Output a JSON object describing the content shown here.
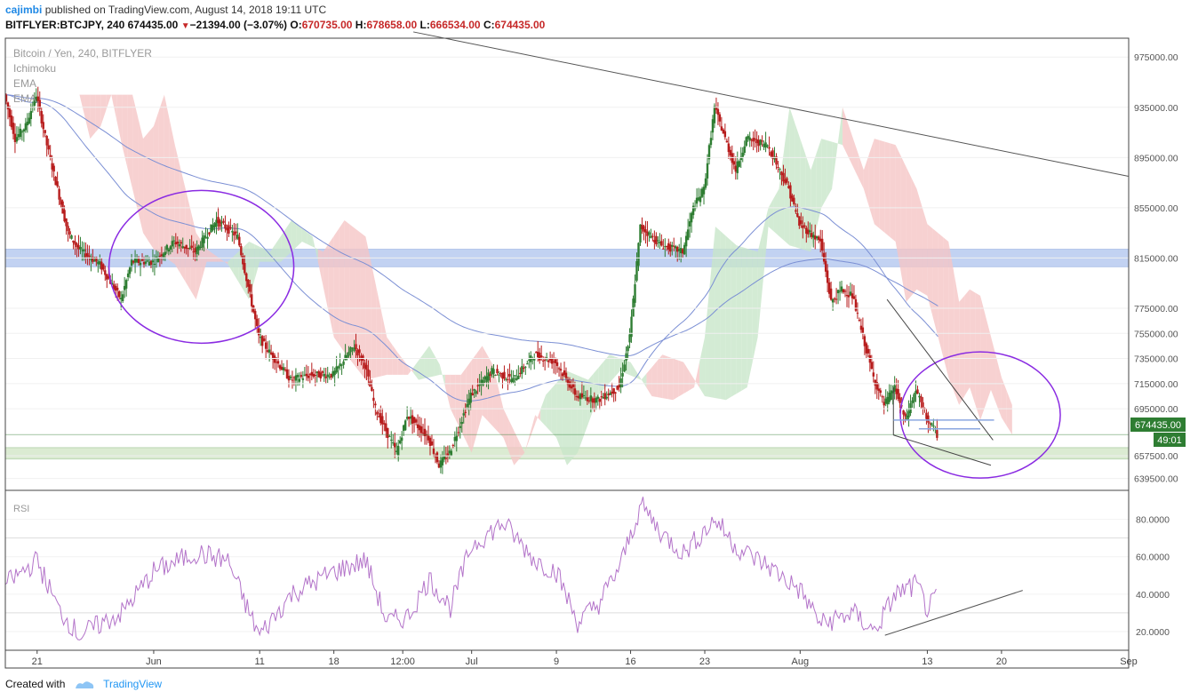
{
  "header": {
    "author": "cajimbi",
    "published_text": " published on TradingView.com, August 14, 2018 19:11 UTC",
    "symbol": "BITFLYER:BTCJPY, 240",
    "last": "674435.00",
    "arrow": "▼",
    "change": "−21394.00 (−3.07%)",
    "o_label": "O:",
    "o_value": "670735.00",
    "h_label": "H:",
    "h_value": "678658.00",
    "l_label": "L:",
    "l_value": "666534.00",
    "c_label": "C:",
    "c_value": "674435.00"
  },
  "legend": {
    "title": "Bitcoin / Yen, 240, BITFLYER",
    "items": [
      "Ichimoku",
      "EMA",
      "EMA"
    ]
  },
  "rsi_label": "RSI",
  "price_badge": "674435.00",
  "timer_badge": "49:01",
  "footer": {
    "created": "Created with",
    "brand": "TradingView"
  },
  "colors": {
    "up": "#2e7d32",
    "down": "#b71c1c",
    "cloud_red": "#f5c6c6",
    "cloud_green": "#c8e6c9",
    "zone_blue": "#aec4ee",
    "zone_green": "#cfe5c3",
    "circle": "#8a2be2",
    "rsi": "#b373c9",
    "ema": "#7b8fd4",
    "badge": "#2e7d32"
  },
  "chart_data": {
    "type": "candlestick",
    "symbol": "BITFLYER:BTCJPY",
    "price_axis_ticks": [
      "975000.00",
      "935000.00",
      "895000.00",
      "855000.00",
      "815000.00",
      "775000.00",
      "755000.00",
      "735000.00",
      "715000.00",
      "695000.00",
      "657500.00",
      "639500.00"
    ],
    "time_axis_ticks": [
      "21",
      "Jun",
      "11",
      "18",
      "12:00",
      "Jul",
      "9",
      "16",
      "23",
      "Aug",
      "13",
      "20",
      "Sep"
    ],
    "rsi_axis_ticks": [
      "80.0000",
      "60.0000",
      "40.0000",
      "20.0000"
    ],
    "ylim": [
      630000,
      990000
    ],
    "rsi_ylim": [
      10,
      95
    ],
    "close_path": [
      {
        "t": "May 18",
        "close": 945000
      },
      {
        "t": "May 19",
        "close": 910000
      },
      {
        "t": "May 20",
        "close": 920000
      },
      {
        "t": "May 21",
        "close": 945000
      },
      {
        "t": "May 22",
        "close": 905000
      },
      {
        "t": "May 23",
        "close": 870000
      },
      {
        "t": "May 24",
        "close": 835000
      },
      {
        "t": "May 25",
        "close": 822000
      },
      {
        "t": "May 27",
        "close": 810000
      },
      {
        "t": "May 29",
        "close": 782000
      },
      {
        "t": "May 30",
        "close": 812000
      },
      {
        "t": "Jun 1",
        "close": 812000
      },
      {
        "t": "Jun 3",
        "close": 828000
      },
      {
        "t": "Jun 5",
        "close": 820000
      },
      {
        "t": "Jun 7",
        "close": 845000
      },
      {
        "t": "Jun 9",
        "close": 832000
      },
      {
        "t": "Jun 10",
        "close": 792000
      },
      {
        "t": "Jun 11",
        "close": 752000
      },
      {
        "t": "Jun 12",
        "close": 740000
      },
      {
        "t": "Jun 14",
        "close": 718000
      },
      {
        "t": "Jun 16",
        "close": 722000
      },
      {
        "t": "Jun 18",
        "close": 722000
      },
      {
        "t": "Jun 20",
        "close": 745000
      },
      {
        "t": "Jun 21",
        "close": 730000
      },
      {
        "t": "Jun 22",
        "close": 695000
      },
      {
        "t": "Jun 24",
        "close": 660000
      },
      {
        "t": "Jun 25",
        "close": 690000
      },
      {
        "t": "Jun 27",
        "close": 672000
      },
      {
        "t": "Jun 28",
        "close": 650000
      },
      {
        "t": "Jun 29",
        "close": 660000
      },
      {
        "t": "Jul 1",
        "close": 706000
      },
      {
        "t": "Jul 3",
        "close": 725000
      },
      {
        "t": "Jul 5",
        "close": 718000
      },
      {
        "t": "Jul 7",
        "close": 738000
      },
      {
        "t": "Jul 9",
        "close": 732000
      },
      {
        "t": "Jul 11",
        "close": 705000
      },
      {
        "t": "Jul 13",
        "close": 702000
      },
      {
        "t": "Jul 15",
        "close": 712000
      },
      {
        "t": "Jul 16",
        "close": 752000
      },
      {
        "t": "Jul 17",
        "close": 840000
      },
      {
        "t": "Jul 19",
        "close": 825000
      },
      {
        "t": "Jul 21",
        "close": 820000
      },
      {
        "t": "Jul 22",
        "close": 855000
      },
      {
        "t": "Jul 23",
        "close": 870000
      },
      {
        "t": "Jul 24",
        "close": 935000
      },
      {
        "t": "Jul 25",
        "close": 910000
      },
      {
        "t": "Jul 26",
        "close": 885000
      },
      {
        "t": "Jul 27",
        "close": 910000
      },
      {
        "t": "Jul 29",
        "close": 905000
      },
      {
        "t": "Jul 31",
        "close": 870000
      },
      {
        "t": "Aug 1",
        "close": 842000
      },
      {
        "t": "Aug 3",
        "close": 828000
      },
      {
        "t": "Aug 4",
        "close": 780000
      },
      {
        "t": "Aug 5",
        "close": 790000
      },
      {
        "t": "Aug 6",
        "close": 785000
      },
      {
        "t": "Aug 8",
        "close": 720000
      },
      {
        "t": "Aug 9",
        "close": 698000
      },
      {
        "t": "Aug 10",
        "close": 712000
      },
      {
        "t": "Aug 11",
        "close": 686000
      },
      {
        "t": "Aug 12",
        "close": 710000
      },
      {
        "t": "Aug 13",
        "close": 688000
      },
      {
        "t": "Aug 14",
        "close": 674435
      }
    ],
    "rsi_path": [
      {
        "t": "May 18",
        "rsi": 45
      },
      {
        "t": "May 21",
        "rsi": 58
      },
      {
        "t": "May 23",
        "rsi": 32
      },
      {
        "t": "May 25",
        "rsi": 18
      },
      {
        "t": "May 29",
        "rsi": 30
      },
      {
        "t": "Jun 1",
        "rsi": 52
      },
      {
        "t": "Jun 5",
        "rsi": 62
      },
      {
        "t": "Jun 8",
        "rsi": 58
      },
      {
        "t": "Jun 10",
        "rsi": 30
      },
      {
        "t": "Jun 11",
        "rsi": 18
      },
      {
        "t": "Jun 14",
        "rsi": 40
      },
      {
        "t": "Jun 18",
        "rsi": 52
      },
      {
        "t": "Jun 21",
        "rsi": 58
      },
      {
        "t": "Jun 23",
        "rsi": 25
      },
      {
        "t": "Jun 25",
        "rsi": 28
      },
      {
        "t": "Jun 27",
        "rsi": 48
      },
      {
        "t": "Jun 29",
        "rsi": 33
      },
      {
        "t": "Jul 1",
        "rsi": 66
      },
      {
        "t": "Jul 4",
        "rsi": 78
      },
      {
        "t": "Jul 7",
        "rsi": 58
      },
      {
        "t": "Jul 9",
        "rsi": 52
      },
      {
        "t": "Jul 11",
        "rsi": 25
      },
      {
        "t": "Jul 13",
        "rsi": 35
      },
      {
        "t": "Jul 15",
        "rsi": 55
      },
      {
        "t": "Jul 17",
        "rsi": 88
      },
      {
        "t": "Jul 19",
        "rsi": 72
      },
      {
        "t": "Jul 21",
        "rsi": 62
      },
      {
        "t": "Jul 24",
        "rsi": 80
      },
      {
        "t": "Jul 26",
        "rsi": 65
      },
      {
        "t": "Jul 29",
        "rsi": 55
      },
      {
        "t": "Aug 1",
        "rsi": 42
      },
      {
        "t": "Aug 3",
        "rsi": 24
      },
      {
        "t": "Aug 6",
        "rsi": 30
      },
      {
        "t": "Aug 8",
        "rsi": 20
      },
      {
        "t": "Aug 10",
        "rsi": 40
      },
      {
        "t": "Aug 12",
        "rsi": 45
      },
      {
        "t": "Aug 13",
        "rsi": 32
      },
      {
        "t": "Aug 14",
        "rsi": 38
      }
    ],
    "zones": [
      {
        "name": "resistance-zone",
        "from": 808000,
        "to": 822000,
        "color": "blue"
      },
      {
        "name": "support-zone",
        "from": 655000,
        "to": 664000,
        "color": "green"
      }
    ],
    "annotations": [
      "two ellipses marking consolidation",
      "descending trendline from top-left",
      "falling wedge near Aug 13",
      "rising RSI trendline (bullish divergence)"
    ]
  }
}
